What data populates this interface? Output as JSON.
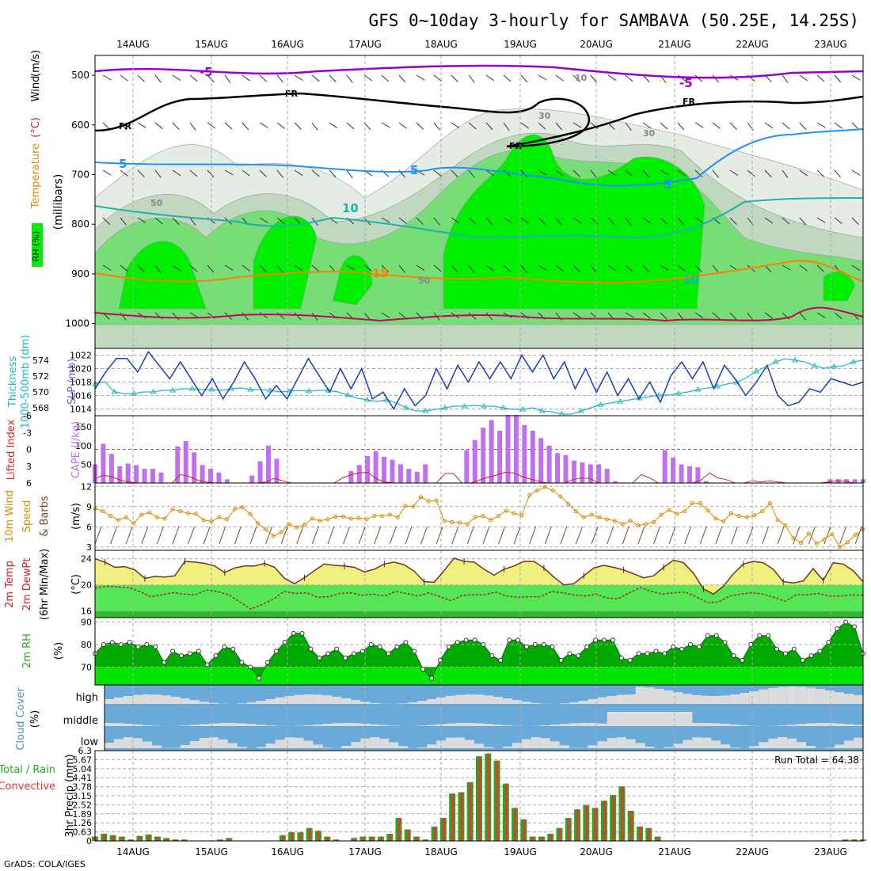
{
  "title": "GFS 0~10day 3-hourly for SAMBAVA (50.25E, 14.25S)",
  "footer": "GrADS: COLA/IGES",
  "chart_data": [
    {
      "type": "heatmap",
      "panel": "pressure-cross-section",
      "date_ticks": [
        "14AUG",
        "15AUG",
        "16AUG",
        "17AUG",
        "18AUG",
        "19AUG",
        "20AUG",
        "21AUG",
        "22AUG",
        "23AUG"
      ],
      "y_ticks": [
        "500",
        "600",
        "700",
        "800",
        "900",
        "1000"
      ],
      "ylim": [
        460,
        1050
      ],
      "ylabel_parts": [
        "RH (%)",
        "Temperature",
        "(°C)",
        "Wind",
        "(m/s)"
      ],
      "yunit": "(millibars)",
      "contour_labels": [
        "-5",
        "-5",
        "FR",
        "FR",
        "FR",
        "FR",
        "5",
        "5",
        "5",
        "10",
        "15",
        "10",
        "30",
        "30",
        "50",
        "50",
        "10"
      ],
      "rh_colors": {
        "gt90": "#00ee00",
        "80_90": "#77dd77",
        "70_80": "#c0d8c0",
        "50_70": "#e4ece4"
      },
      "isotherm_colors": {
        "m5": "#9900cc",
        "fr": "#000000",
        "p5": "#1e90ff",
        "p10": "#20b2aa",
        "p15": "#ff7f00",
        "p20": "#cc0066"
      }
    },
    {
      "type": "line",
      "panel": "slp-thickness",
      "series": [
        {
          "name": "SLP (mb)",
          "color": "#1a3bcc",
          "y_ticks": [
            "1014",
            "1016",
            "1018",
            "1020",
            "1022"
          ],
          "ylim": [
            1013,
            1023
          ],
          "values": [
            1017,
            1019.5,
            1021.5,
            1021.5,
            1019.5,
            1022.5,
            1020.5,
            1018.5,
            1021,
            1018.5,
            1016,
            1018.5,
            1015.5,
            1018,
            1021,
            1018.5,
            1015.5,
            1017.5,
            1015.5,
            1018.5,
            1021.5,
            1019,
            1016.5,
            1020,
            1017,
            1020,
            1015.5,
            1016.5,
            1014,
            1017,
            1014.5,
            1016,
            1020,
            1017,
            1020.5,
            1018,
            1021,
            1018.5,
            1021,
            1018.5,
            1022,
            1019.5,
            1022,
            1018.5,
            1021,
            1017,
            1020,
            1016.5,
            1019.5,
            1016,
            1018.5,
            1015.5,
            1018,
            1015,
            1019,
            1021,
            1018.5,
            1021,
            1017,
            1020.5,
            1018.5,
            1016,
            1018,
            1020.5,
            1016,
            1014.5,
            1015,
            1017,
            1016.5,
            1018.5,
            1018,
            1017.5,
            1018
          ]
        },
        {
          "name": "Thickness 1000-500mb (dm)",
          "color": "#20b8c0",
          "y_ticks": [
            "568",
            "570",
            "572",
            "574"
          ],
          "ylim": [
            567,
            575.5
          ],
          "values": [
            571,
            571.3,
            570,
            569.8,
            569.8,
            570,
            570,
            570.2,
            570.2,
            570.4,
            570.4,
            570.3,
            570.3,
            570.2,
            570.4,
            570.5,
            570.3,
            570.3,
            570.2,
            570,
            570.1,
            570.2,
            570.1,
            570.2,
            570.2,
            570,
            569.6,
            569.2,
            569,
            568.8,
            569,
            568.6,
            568,
            567.6,
            567.6,
            567.8,
            568,
            568.2,
            568.2,
            568.3,
            568.2,
            568.2,
            568,
            567.8,
            567.8,
            568,
            567.6,
            567.5,
            567.2,
            567.2,
            567.6,
            568,
            568.4,
            568.6,
            568.8,
            569,
            569.2,
            569.4,
            569.6,
            569.6,
            569.8,
            570,
            570.3,
            570.5,
            570.7,
            571,
            571.2,
            571.8,
            572.6,
            573.2,
            573.8,
            574.2,
            574,
            573.8,
            573.3,
            573,
            573.2,
            573.3,
            573.8,
            574
          ]
        }
      ]
    },
    {
      "type": "bar",
      "panel": "cape-lifted-index",
      "ylabel_cape": "CAPE (J/kg)",
      "ylabel_li": "Lifted Index",
      "cape_ticks": [
        "50",
        "100",
        "150"
      ],
      "li_ticks": [
        "-6",
        "-3",
        "0",
        "3",
        "6"
      ],
      "ylim_cape": [
        0,
        180
      ],
      "cape_values": [
        50,
        105,
        78,
        45,
        52,
        48,
        38,
        38,
        28,
        0,
        98,
        112,
        82,
        48,
        38,
        28,
        10,
        0,
        0,
        20,
        58,
        100,
        65,
        0,
        0,
        0,
        0,
        0,
        0,
        0,
        0,
        32,
        48,
        72,
        85,
        70,
        62,
        50,
        38,
        30,
        50,
        0,
        0,
        0,
        0,
        88,
        115,
        148,
        168,
        140,
        182,
        182,
        155,
        140,
        120,
        100,
        80,
        75,
        60,
        55,
        50,
        50,
        38,
        5,
        0,
        0,
        0,
        0,
        0,
        88,
        68,
        50,
        45,
        42,
        5,
        0,
        0,
        0,
        0,
        0,
        0,
        0,
        0,
        0,
        0,
        0,
        0,
        0,
        0,
        10,
        10,
        10,
        10,
        10
      ],
      "li_values": [
        5.2,
        4.6,
        4.9,
        5.5,
        5.8,
        6,
        6,
        6,
        6,
        6,
        4.5,
        4.8,
        5.5,
        5.8,
        6,
        6,
        6,
        6,
        6,
        6,
        5.8,
        5.2,
        5.6,
        6,
        6,
        6,
        6,
        6,
        6,
        5.1,
        4.5,
        4.2,
        4.1,
        5.3,
        5.8,
        6,
        6,
        6,
        6,
        6,
        6,
        4.3,
        4.3,
        6,
        6,
        5.5,
        5,
        4.6,
        4.1,
        4.2,
        4.8,
        5.3,
        5.7,
        6,
        6,
        6,
        5.4,
        5.1,
        5.2,
        6,
        6,
        6,
        6,
        6,
        4.5,
        5.1,
        6,
        6,
        6,
        6,
        6,
        5.5,
        4.2,
        5.1,
        5.4,
        6,
        6,
        5.6,
        5.8,
        5.6,
        5.8,
        6,
        6,
        6,
        6,
        6,
        5.8,
        5.6,
        5.7,
        6,
        6
      ]
    },
    {
      "type": "line",
      "panel": "wind-10m",
      "ylabel": "10m Wind Speed & Barbs (m/s)",
      "ylabel_parts": [
        "10m Wind",
        "Speed",
        "& Barbs",
        "(m/s)"
      ],
      "y_ticks": [
        "3",
        "6",
        "9",
        "12"
      ],
      "ylim": [
        2.5,
        12.5
      ],
      "values": [
        8.7,
        8.3,
        7.6,
        7,
        7.4,
        6.5,
        7.8,
        8.1,
        7.4,
        7.2,
        8.6,
        8.3,
        8,
        7.9,
        7,
        6.8,
        7.4,
        7.1,
        8.6,
        8.9,
        7.9,
        6.5,
        5.6,
        4.6,
        5.2,
        6.4,
        5.9,
        6.3,
        7.2,
        6.9,
        7.1,
        7.5,
        7.5,
        7.2,
        7.3,
        7.1,
        7.6,
        7.6,
        7.8,
        7.4,
        9.1,
        9,
        10.4,
        9.8,
        9.9,
        6.9,
        6.7,
        6.6,
        6.4,
        7.4,
        7.6,
        7,
        7.6,
        8.4,
        8,
        7.7,
        10.7,
        11.4,
        11.9,
        11.4,
        10.5,
        9.4,
        8.3,
        7.4,
        7.8,
        7.4,
        7.1,
        6.9,
        6.4,
        6.9,
        6.2,
        6.4,
        6.7,
        7.8,
        8.5,
        7.9,
        8.3,
        9.5,
        9.5,
        8.4,
        7.2,
        6.8,
        8,
        7.6,
        7.4,
        7.7,
        8.3,
        9.5,
        7,
        6.2,
        4.3,
        3.6,
        5,
        3.5,
        4.1,
        4.9,
        3,
        3.7,
        4.8,
        5.6
      ],
      "color": "#e08a00"
    },
    {
      "type": "line",
      "panel": "temperature-2m",
      "ylabel_parts": [
        "2m Temp",
        "2m DewPt",
        "(6hr Min/Max)",
        "(°C)"
      ],
      "y_ticks": [
        "16",
        "20",
        "24"
      ],
      "ylim": [
        15,
        25.3
      ],
      "series": [
        {
          "name": "2m Temp",
          "color": "#7a3020",
          "values": [
            24,
            23.5,
            22.7,
            22.8,
            22.3,
            21,
            21.3,
            21.2,
            21.4,
            23.6,
            23.5,
            23.3,
            22.9,
            21.9,
            22.6,
            22.9,
            22.9,
            23.3,
            22.7,
            21,
            20.2,
            21.1,
            22.2,
            23.2,
            23,
            22.9,
            22.7,
            22,
            22.4,
            23.2,
            23.5,
            23.1,
            22.1,
            20.5,
            20.4,
            22.2,
            24.1,
            23.6,
            23.5,
            22.4,
            21.5,
            22.4,
            22.9,
            23.6,
            23.6,
            22.6,
            21.2,
            20,
            20.2,
            21.4,
            22.6,
            23,
            22.7,
            22.3,
            21.7,
            21.1,
            21.4,
            22.7,
            23.8,
            23.4,
            21.8,
            19.4,
            18.6,
            19.8,
            21.7,
            23.2,
            23.6,
            23.4,
            22.4,
            20.5,
            20.3,
            20.6,
            22.5,
            20.7,
            23.4,
            23.2,
            22.2,
            20.5
          ]
        },
        {
          "name": "2m DewPt",
          "color": "#9a3030",
          "values": [
            19.5,
            19.8,
            19.7,
            19.6,
            19,
            18.2,
            18.5,
            18.8,
            18.6,
            18.5,
            19.2,
            19,
            18.5,
            17.4,
            16.3,
            17,
            17.8,
            19,
            18.7,
            18.8,
            18.1,
            18.2,
            18.7,
            18.8,
            18.4,
            18.6,
            18.3,
            19,
            18.7,
            18.3,
            18.8,
            18.2,
            17.6,
            18.4,
            18.5,
            18.5,
            18.9,
            18.3,
            18.1,
            18.2,
            18.2,
            19,
            18.8,
            18.5,
            18.3,
            18.6,
            18,
            17.9,
            18.8,
            19.6,
            19,
            18.6,
            18.8,
            18.9,
            18.2,
            17.3,
            17.4,
            18.3,
            18.6,
            18.8,
            18.6,
            18.1,
            17.5,
            18.5,
            18.5,
            18.7,
            18.3,
            18.3,
            18.5,
            18.4
          ]
        }
      ]
    },
    {
      "type": "area",
      "panel": "rh-2m",
      "ylabel": "2m RH",
      "yunit": "(%)",
      "y_ticks": [
        "70",
        "80",
        "90"
      ],
      "ylim": [
        62,
        92
      ],
      "values": [
        76,
        80,
        81,
        80,
        81,
        79,
        80,
        79,
        72,
        77,
        75,
        76,
        77,
        71,
        75,
        79,
        78,
        72,
        70,
        65,
        72,
        77,
        81,
        85,
        85,
        78,
        74,
        76,
        78,
        74,
        76,
        77,
        80,
        79,
        76,
        79,
        81,
        77,
        69,
        65,
        73,
        79,
        81,
        82,
        82,
        80,
        75,
        73,
        82,
        82,
        79,
        80,
        80,
        79,
        73,
        76,
        75,
        79,
        82,
        82,
        82,
        74,
        73,
        76,
        76,
        77,
        76,
        79,
        78,
        80,
        79,
        84,
        84,
        81,
        75,
        73,
        80,
        84,
        84,
        78,
        76,
        78,
        73,
        75,
        77,
        81,
        87,
        90,
        88,
        76
      ]
    },
    {
      "type": "heatmap",
      "panel": "cloud-cover",
      "ylabel": "Cloud Cover",
      "yunit": "(%)",
      "levels": [
        "high",
        "middle",
        "low"
      ],
      "colors": {
        "sky": "#6aaad8",
        "cloud": "#dcdcdc"
      }
    },
    {
      "type": "bar",
      "panel": "precip-3hr",
      "ylabel": "3hr Precip (mm)",
      "ylabel_left": [
        "Total / Rain",
        "Convective"
      ],
      "run_total_label": "Run Total = 64.38",
      "y_ticks": [
        "0",
        "0.63",
        "1.26",
        "1.89",
        "2.52",
        "3.15",
        "3.78",
        "4.41",
        "5.04",
        "5.67",
        "6.3"
      ],
      "ylim": [
        0,
        6.3
      ],
      "values": [
        0.3,
        0.5,
        0.4,
        0.3,
        0.1,
        0.35,
        0.45,
        0.3,
        0.2,
        0.1,
        0.1,
        0,
        0,
        0,
        0.1,
        0.2,
        0,
        0,
        0,
        0,
        0,
        0.4,
        0.6,
        0.6,
        0.9,
        0.7,
        0.3,
        0.1,
        0,
        0.2,
        0.3,
        0.3,
        0.3,
        0.5,
        1.6,
        0.8,
        0.3,
        0.1,
        1,
        1.6,
        3.3,
        3.4,
        4.1,
        5.9,
        6.1,
        5.6,
        4,
        2.3,
        1.5,
        0.3,
        0.3,
        0.5,
        0.9,
        1.6,
        2.2,
        2.5,
        2.3,
        2.8,
        3.2,
        3.8,
        2.1,
        1,
        0.9,
        0.3,
        0,
        0,
        0,
        0,
        0,
        0,
        0,
        0,
        0,
        0,
        0,
        0,
        0,
        0,
        0,
        0,
        0,
        0,
        0,
        0,
        0.1,
        0.1,
        0.1
      ],
      "total_color": "#22aa22",
      "convective_color": "#ee3333"
    }
  ]
}
